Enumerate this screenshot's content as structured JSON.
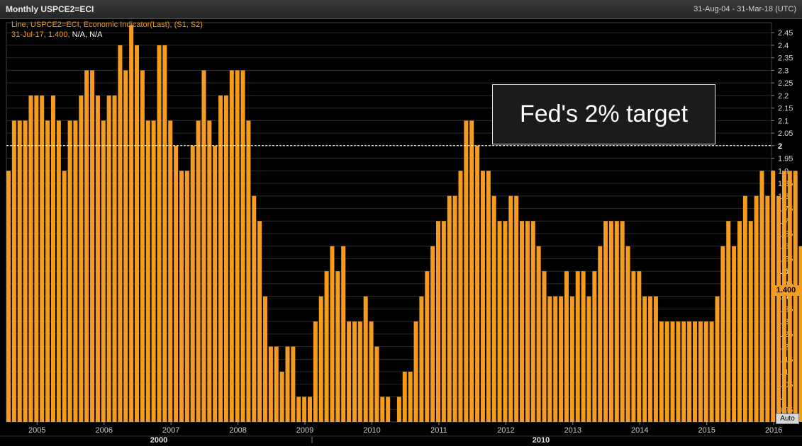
{
  "header": {
    "title": "Monthly USPCE2=ECI",
    "date_range": "31-Aug-04 - 31-Mar-18 (UTC)"
  },
  "legend": {
    "line1": "Line, USPCE2=ECI, Economic Indicator(Last), (S1, S2)",
    "line2_prefix": "31-Jul-17, 1.400, ",
    "line2_na": "N/A, N/A"
  },
  "annotation": {
    "text": "Fed's 2% target"
  },
  "controls": {
    "auto_label": "Auto"
  },
  "current_value": {
    "label": "1.400"
  },
  "colors": {
    "bar": "#f59b1e",
    "background": "#000000",
    "grid": "#2a2a2a",
    "reference_line": "#ffffff"
  },
  "chart_data": {
    "type": "bar",
    "title": "Monthly USPCE2=ECI",
    "x_start": "2004-08",
    "values": [
      1.9,
      2.1,
      2.1,
      2.1,
      2.2,
      2.2,
      2.2,
      2.1,
      2.2,
      2.1,
      1.9,
      2.1,
      2.1,
      2.2,
      2.3,
      2.3,
      2.2,
      2.1,
      2.2,
      2.2,
      2.4,
      2.3,
      2.48,
      2.4,
      2.3,
      2.1,
      2.1,
      2.4,
      2.4,
      2.1,
      2.0,
      1.9,
      1.9,
      2.0,
      2.1,
      2.3,
      2.1,
      2.0,
      2.2,
      2.2,
      2.3,
      2.3,
      2.3,
      2.1,
      1.8,
      1.7,
      1.4,
      1.2,
      1.2,
      1.1,
      1.2,
      1.2,
      1.0,
      1.0,
      1.0,
      1.3,
      1.4,
      1.5,
      1.6,
      1.5,
      1.6,
      1.3,
      1.3,
      1.3,
      1.4,
      1.3,
      1.2,
      1.0,
      1.0,
      0.9,
      1.0,
      1.1,
      1.1,
      1.3,
      1.4,
      1.5,
      1.6,
      1.7,
      1.7,
      1.8,
      1.8,
      1.9,
      2.1,
      2.1,
      2.0,
      1.9,
      1.9,
      1.8,
      1.7,
      1.7,
      1.8,
      1.8,
      1.7,
      1.7,
      1.7,
      1.6,
      1.5,
      1.4,
      1.4,
      1.4,
      1.5,
      1.4,
      1.5,
      1.5,
      1.4,
      1.5,
      1.6,
      1.7,
      1.7,
      1.7,
      1.7,
      1.6,
      1.5,
      1.5,
      1.4,
      1.4,
      1.4,
      1.3,
      1.3,
      1.3,
      1.3,
      1.3,
      1.3,
      1.3,
      1.3,
      1.3,
      1.3,
      1.4,
      1.6,
      1.7,
      1.6,
      1.7,
      1.8,
      1.7,
      1.8,
      1.9,
      1.8,
      1.9,
      1.8,
      1.9,
      1.9,
      1.9,
      1.6,
      1.6,
      1.5,
      1.5,
      1.4
    ],
    "x_tick_labels": [
      "2005",
      "2006",
      "2007",
      "2008",
      "2009",
      "2010",
      "2011",
      "2012",
      "2013",
      "2014",
      "2015",
      "2016",
      "2017",
      "2018"
    ],
    "decade_labels": [
      "2000",
      "2010"
    ],
    "y_tick_labels": [
      "0.95",
      "1",
      "1.05",
      "1.1",
      "1.15",
      "1.2",
      "1.25",
      "1.3",
      "1.35",
      "1.4",
      "1.45",
      "1.5",
      "1.55",
      "1.6",
      "1.65",
      "1.7",
      "1.75",
      "1.8",
      "1.85",
      "1.9",
      "1.95",
      "2",
      "2.05",
      "2.1",
      "2.15",
      "2.2",
      "2.25",
      "2.3",
      "2.35",
      "2.4",
      "2.45"
    ],
    "y_bold_labels": [
      "1",
      "1.5",
      "2"
    ],
    "ylim": [
      0.9,
      2.49
    ],
    "reference_line": {
      "value": 2.0,
      "label": "Fed's 2% target"
    },
    "last_value": 1.4,
    "last_date": "31-Jul-17",
    "grid": true
  }
}
